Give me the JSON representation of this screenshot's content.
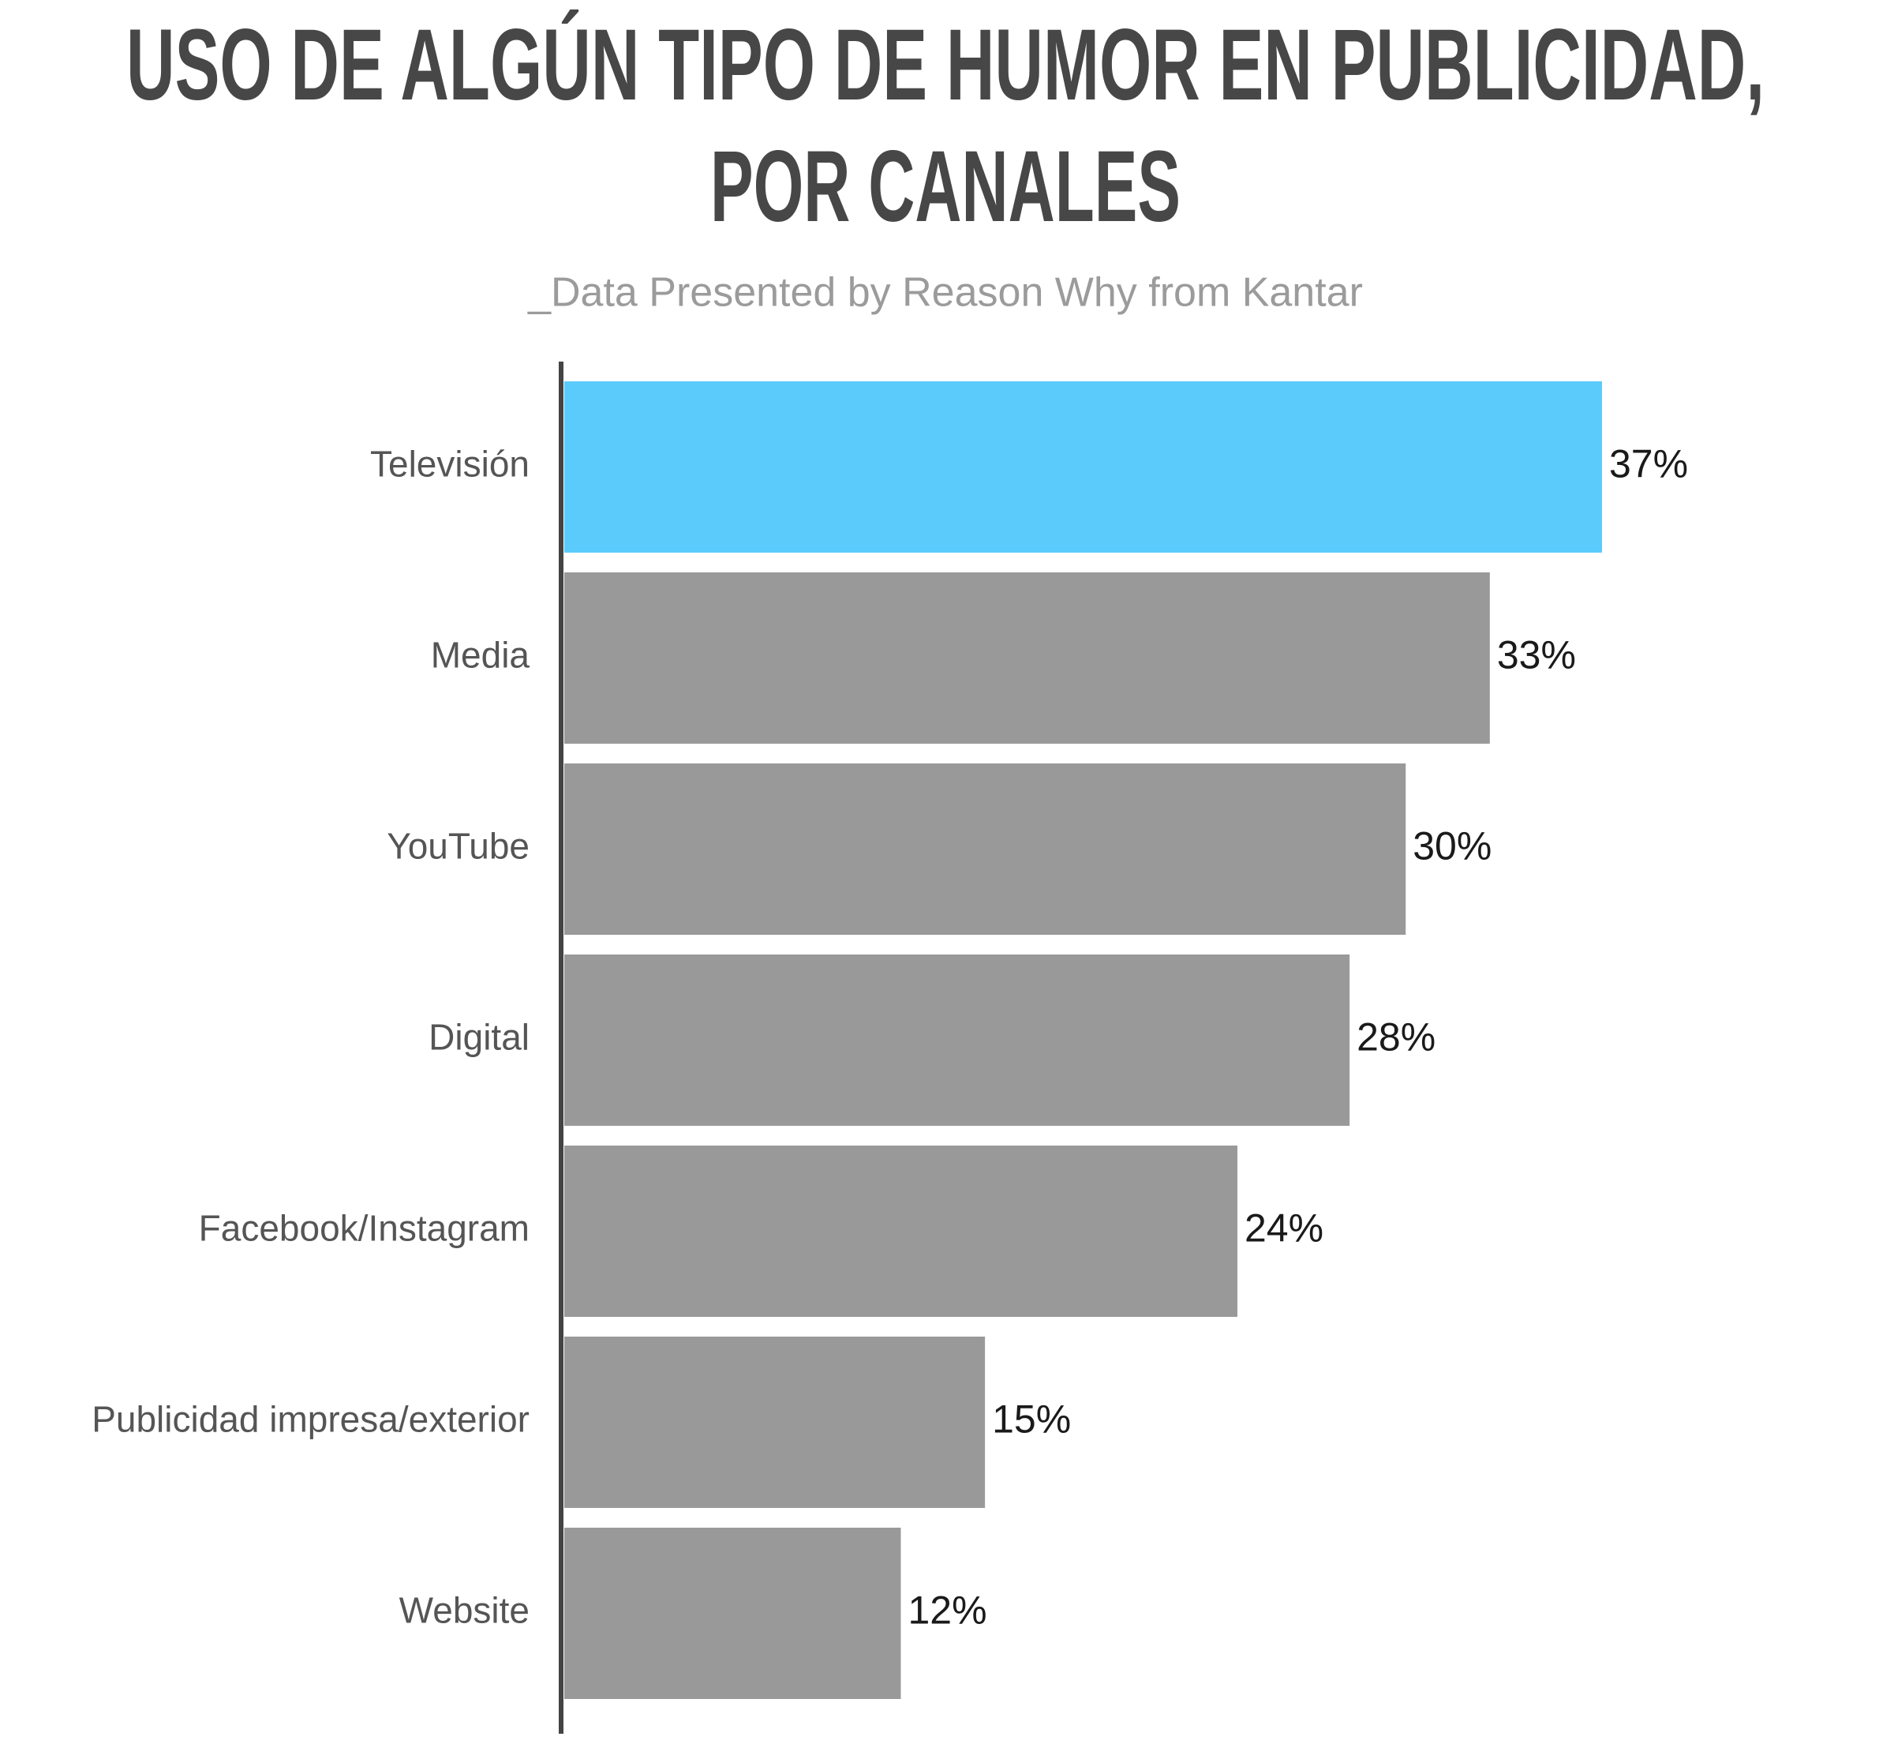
{
  "chart_data": {
    "type": "bar",
    "orientation": "horizontal",
    "title": [
      "USO DE ALGÚN TIPO DE HUMOR EN PUBLICIDAD,",
      "POR CANALES"
    ],
    "subtitle": "_Data Presented by Reason Why from Kantar",
    "categories": [
      "Televisión",
      "Media",
      "YouTube",
      "Digital",
      "Facebook/Instagram",
      "Publicidad impresa/exterior",
      "Website"
    ],
    "values": [
      37,
      33,
      30,
      28,
      24,
      15,
      12
    ],
    "value_labels": [
      "37%",
      "33%",
      "30%",
      "28%",
      "24%",
      "15%",
      "12%"
    ],
    "colors": [
      "#5bcbfb",
      "#999999",
      "#999999",
      "#999999",
      "#999999",
      "#999999",
      "#999999"
    ]
  }
}
